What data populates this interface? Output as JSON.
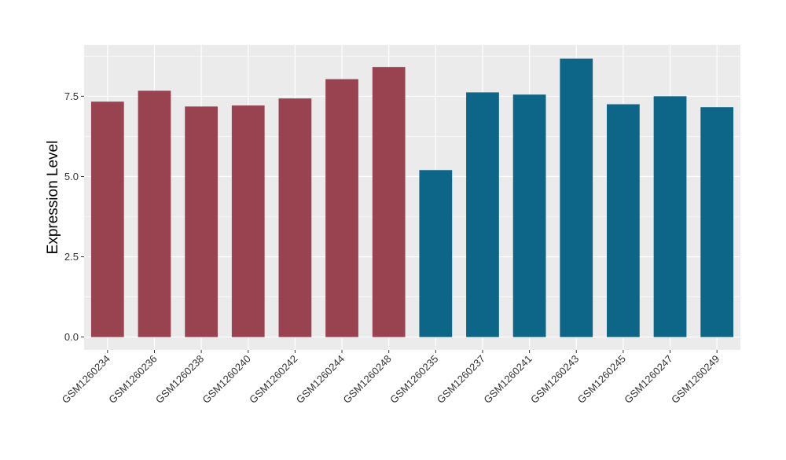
{
  "chart_data": {
    "type": "bar",
    "xlabel": "",
    "ylabel": "Expression Level",
    "ylim": [
      -0.4,
      9.1
    ],
    "yticks": [
      0.0,
      2.5,
      5.0,
      7.5
    ],
    "ytick_labels": [
      "0.0",
      "2.5",
      "5.0",
      "7.5"
    ],
    "grid": true,
    "legend": "none",
    "categories": [
      "GSM1260234",
      "GSM1260236",
      "GSM1260238",
      "GSM1260240",
      "GSM1260242",
      "GSM1260244",
      "GSM1260248",
      "GSM1260235",
      "GSM1260237",
      "GSM1260241",
      "GSM1260243",
      "GSM1260245",
      "GSM1260247",
      "GSM1260249"
    ],
    "values": [
      7.33,
      7.67,
      7.18,
      7.21,
      7.43,
      8.03,
      8.41,
      5.2,
      7.62,
      7.55,
      8.67,
      7.25,
      7.5,
      7.16
    ],
    "groups": [
      "a",
      "a",
      "a",
      "a",
      "a",
      "a",
      "a",
      "b",
      "b",
      "b",
      "b",
      "b",
      "b",
      "b"
    ],
    "colors": {
      "a": "#9a4350",
      "b": "#0d6587"
    },
    "panel_background": "#ebebeb",
    "gridline_color": "#ffffff"
  }
}
